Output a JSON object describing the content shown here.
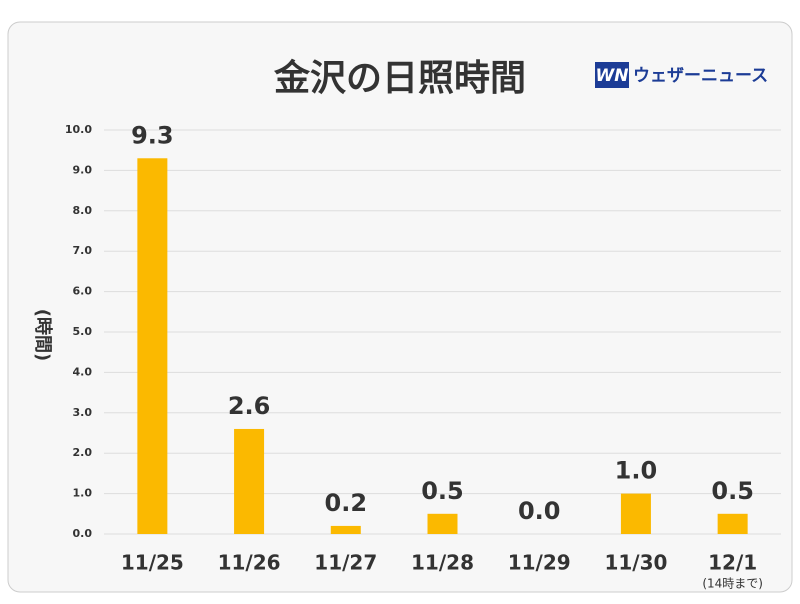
{
  "chart_data": {
    "type": "bar",
    "title": "金沢の日照時間",
    "y_label": "(時間)",
    "categories": [
      "11/25",
      "11/26",
      "11/27",
      "11/28",
      "11/29",
      "11/30",
      "12/1"
    ],
    "values": [
      9.3,
      2.6,
      0.2,
      0.5,
      0.0,
      1.0,
      0.5
    ],
    "value_labels": [
      "9.3",
      "2.6",
      "0.2",
      "0.5",
      "0.0",
      "1.0",
      "0.5"
    ],
    "color": "#fbb900",
    "ylim": [
      0,
      10
    ],
    "yticks": [
      {
        "value": 0,
        "label": "0.0"
      },
      {
        "value": 1,
        "label": "1.0"
      },
      {
        "value": 2,
        "label": "2.0"
      },
      {
        "value": 3,
        "label": "3.0"
      },
      {
        "value": 4,
        "label": "4.0"
      },
      {
        "value": 5,
        "label": "5.0"
      },
      {
        "value": 6,
        "label": "6.0"
      },
      {
        "value": 7,
        "label": "7.0"
      },
      {
        "value": 8,
        "label": "8.0"
      },
      {
        "value": 9,
        "label": "9.0"
      },
      {
        "value": 10,
        "label": "10.0"
      }
    ],
    "grid": true,
    "annotation": "(14時まで)"
  },
  "brand": {
    "mark": "WN",
    "name": "ウェザーニュース"
  }
}
